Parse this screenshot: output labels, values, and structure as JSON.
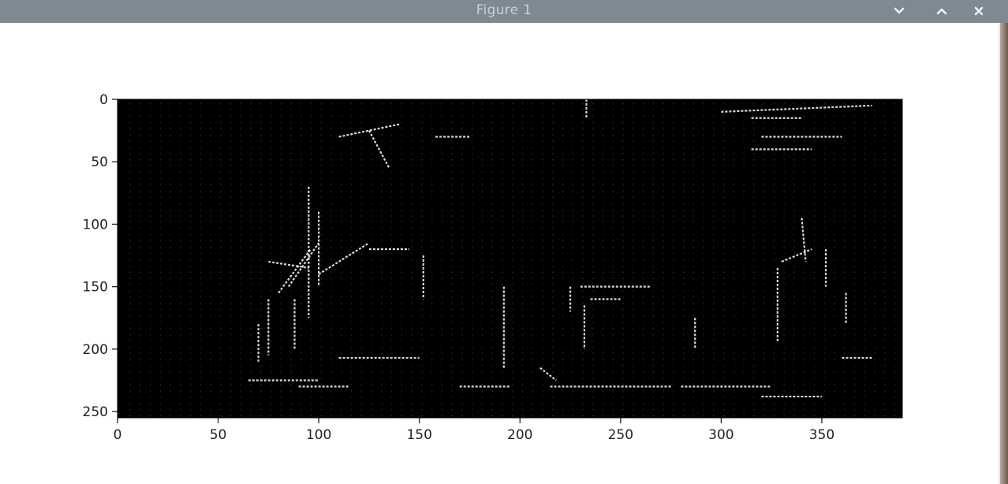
{
  "window": {
    "title": "Figure 1",
    "controls": [
      "minimize",
      "maximize",
      "close"
    ]
  },
  "colors": {
    "titlebar": "#7f8993",
    "titlebar_text": "#c9d0d6",
    "image_background": "#000000",
    "edge_pixels": "#ffffff"
  },
  "chart_data": {
    "type": "heatmap",
    "description_of_content": "grayscale edge-detection image, mostly black with white edge segments",
    "title": "",
    "xlabel": "",
    "ylabel": "",
    "image_width": 390,
    "image_height": 255,
    "xlim": [
      0,
      390
    ],
    "ylim": [
      255,
      0
    ],
    "x_ticks": [
      0,
      50,
      100,
      150,
      200,
      250,
      300,
      350
    ],
    "y_ticks": [
      0,
      50,
      100,
      150,
      200,
      250
    ],
    "grid": false,
    "colormap": "gray",
    "edge_segments": [
      {
        "x1": 70,
        "y1": 180,
        "x2": 70,
        "y2": 210
      },
      {
        "x1": 75,
        "y1": 160,
        "x2": 75,
        "y2": 205
      },
      {
        "x1": 88,
        "y1": 160,
        "x2": 88,
        "y2": 200
      },
      {
        "x1": 80,
        "y1": 155,
        "x2": 96,
        "y2": 120
      },
      {
        "x1": 85,
        "y1": 150,
        "x2": 100,
        "y2": 115
      },
      {
        "x1": 75,
        "y1": 130,
        "x2": 95,
        "y2": 135
      },
      {
        "x1": 95,
        "y1": 70,
        "x2": 95,
        "y2": 175
      },
      {
        "x1": 100,
        "y1": 90,
        "x2": 100,
        "y2": 150
      },
      {
        "x1": 100,
        "y1": 140,
        "x2": 125,
        "y2": 115
      },
      {
        "x1": 125,
        "y1": 120,
        "x2": 145,
        "y2": 120
      },
      {
        "x1": 152,
        "y1": 125,
        "x2": 152,
        "y2": 160
      },
      {
        "x1": 110,
        "y1": 30,
        "x2": 140,
        "y2": 20
      },
      {
        "x1": 158,
        "y1": 30,
        "x2": 175,
        "y2": 30
      },
      {
        "x1": 192,
        "y1": 150,
        "x2": 192,
        "y2": 215
      },
      {
        "x1": 225,
        "y1": 150,
        "x2": 225,
        "y2": 170
      },
      {
        "x1": 230,
        "y1": 150,
        "x2": 265,
        "y2": 150
      },
      {
        "x1": 235,
        "y1": 160,
        "x2": 250,
        "y2": 160
      },
      {
        "x1": 232,
        "y1": 165,
        "x2": 232,
        "y2": 200
      },
      {
        "x1": 233,
        "y1": 0,
        "x2": 233,
        "y2": 15
      },
      {
        "x1": 287,
        "y1": 175,
        "x2": 287,
        "y2": 200
      },
      {
        "x1": 328,
        "y1": 135,
        "x2": 328,
        "y2": 195
      },
      {
        "x1": 330,
        "y1": 130,
        "x2": 345,
        "y2": 120
      },
      {
        "x1": 340,
        "y1": 95,
        "x2": 342,
        "y2": 130
      },
      {
        "x1": 352,
        "y1": 120,
        "x2": 352,
        "y2": 150
      },
      {
        "x1": 362,
        "y1": 155,
        "x2": 362,
        "y2": 180
      },
      {
        "x1": 65,
        "y1": 225,
        "x2": 100,
        "y2": 225
      },
      {
        "x1": 110,
        "y1": 207,
        "x2": 150,
        "y2": 207
      },
      {
        "x1": 170,
        "y1": 230,
        "x2": 195,
        "y2": 230
      },
      {
        "x1": 215,
        "y1": 230,
        "x2": 275,
        "y2": 230
      },
      {
        "x1": 280,
        "y1": 230,
        "x2": 325,
        "y2": 230
      },
      {
        "x1": 320,
        "y1": 238,
        "x2": 350,
        "y2": 238
      },
      {
        "x1": 360,
        "y1": 207,
        "x2": 375,
        "y2": 207
      },
      {
        "x1": 300,
        "y1": 10,
        "x2": 375,
        "y2": 5
      },
      {
        "x1": 315,
        "y1": 15,
        "x2": 340,
        "y2": 15
      },
      {
        "x1": 320,
        "y1": 30,
        "x2": 360,
        "y2": 30
      },
      {
        "x1": 315,
        "y1": 40,
        "x2": 345,
        "y2": 40
      },
      {
        "x1": 90,
        "y1": 230,
        "x2": 115,
        "y2": 230
      },
      {
        "x1": 125,
        "y1": 25,
        "x2": 135,
        "y2": 55
      },
      {
        "x1": 210,
        "y1": 215,
        "x2": 218,
        "y2": 225
      }
    ]
  }
}
